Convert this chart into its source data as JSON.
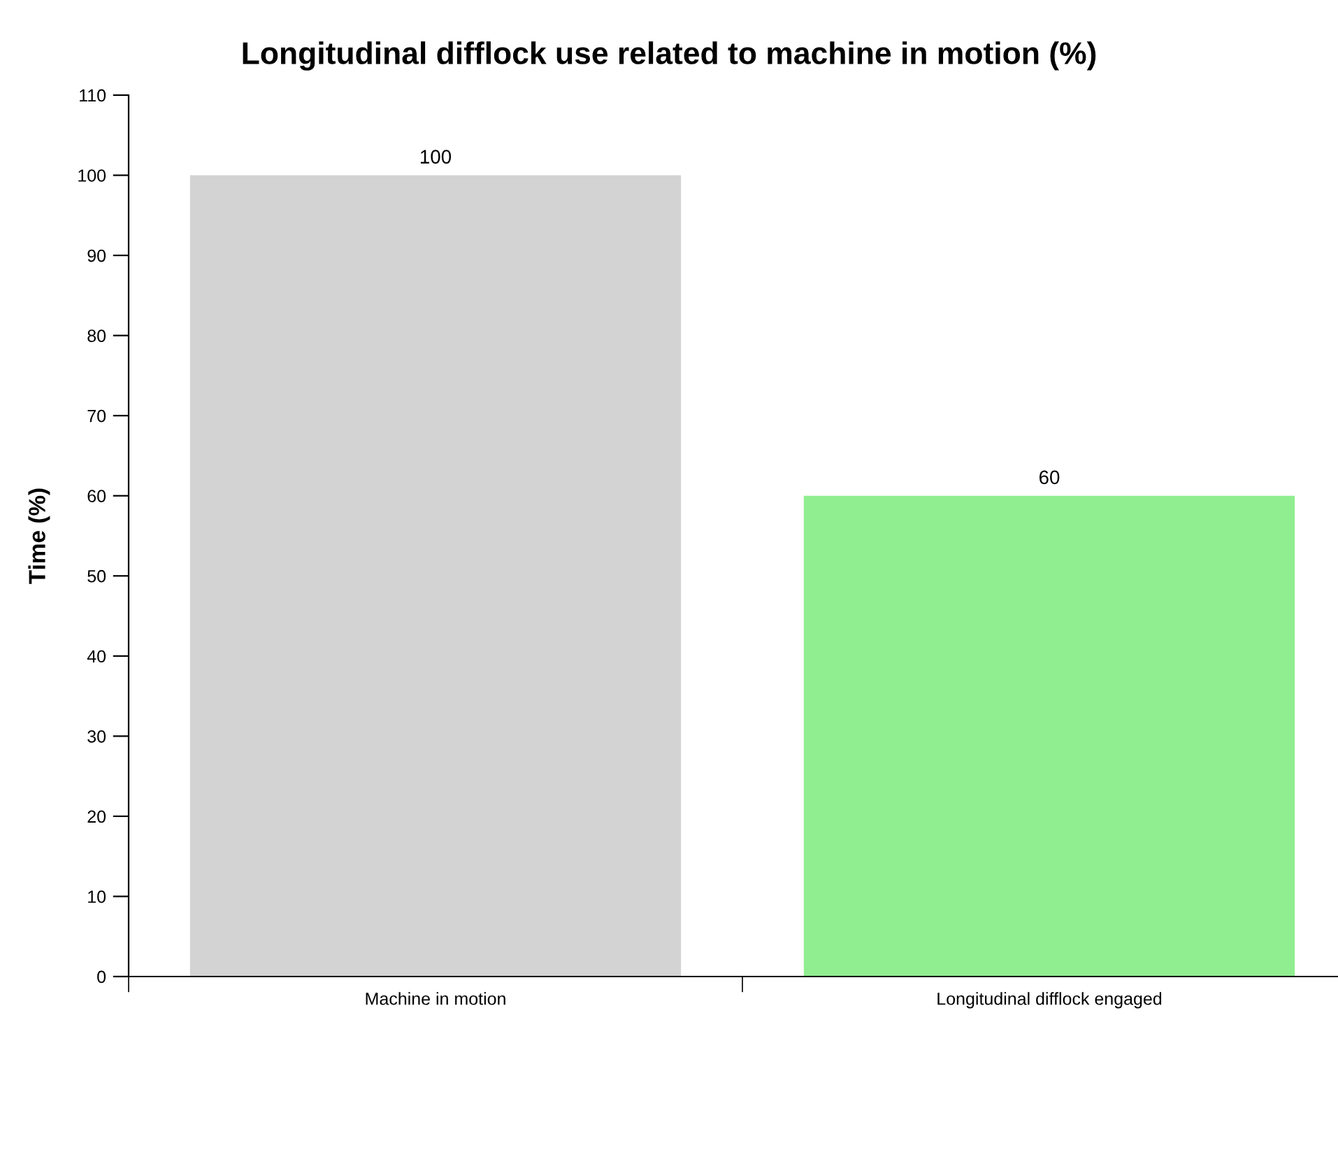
{
  "chart_data": {
    "type": "bar",
    "title": "Longitudinal difflock use related to machine in motion (%)",
    "ylabel": "Time (%)",
    "categories": [
      "Machine in motion",
      "Longitudinal difflock engaged"
    ],
    "values": [
      100,
      60
    ],
    "colors": [
      "#d3d3d3",
      "#90ee90"
    ],
    "ylim": [
      0,
      110
    ],
    "yticks": [
      0,
      10,
      20,
      30,
      40,
      50,
      60,
      70,
      80,
      90,
      100,
      110
    ],
    "data_labels": true,
    "grid": false
  }
}
